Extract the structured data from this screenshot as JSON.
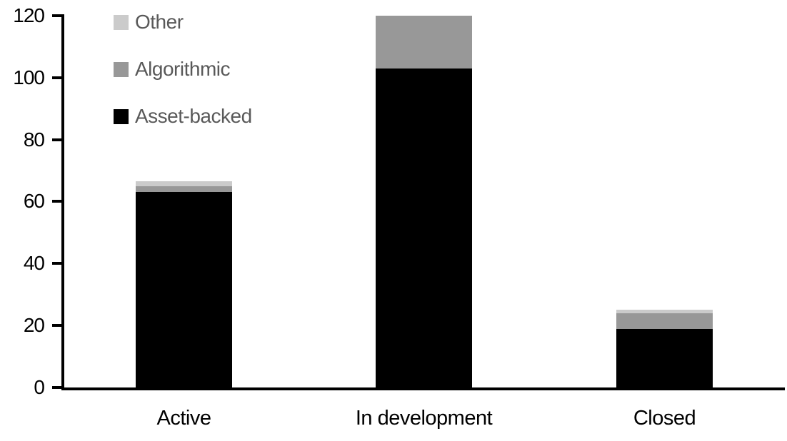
{
  "chart_data": {
    "type": "bar",
    "stacked": true,
    "title": "",
    "xlabel": "",
    "ylabel": "",
    "categories": [
      "Active",
      "In development",
      "Closed"
    ],
    "series": [
      {
        "name": "Asset-backed",
        "color": "#000000",
        "values": [
          63,
          103,
          19
        ]
      },
      {
        "name": "Algorithmic",
        "color": "#989898",
        "values": [
          2,
          17,
          5
        ]
      },
      {
        "name": "Other",
        "color": "#cbcbcb",
        "values": [
          1.5,
          0,
          1
        ]
      }
    ],
    "totals": [
      66.5,
      120,
      25
    ],
    "ylim": [
      0,
      120
    ],
    "yticks": [
      "0",
      "20",
      "40",
      "60",
      "80",
      "100",
      "120"
    ],
    "grid": false,
    "legend_position": "top-left",
    "legend_order_top_to_bottom": [
      "Other",
      "Algorithmic",
      "Asset-backed"
    ],
    "colors": {
      "axis": "#000000",
      "tick_label_text": "#000000",
      "category_label_text": "#000000",
      "legend_text": "#595959",
      "background": "#ffffff"
    }
  }
}
